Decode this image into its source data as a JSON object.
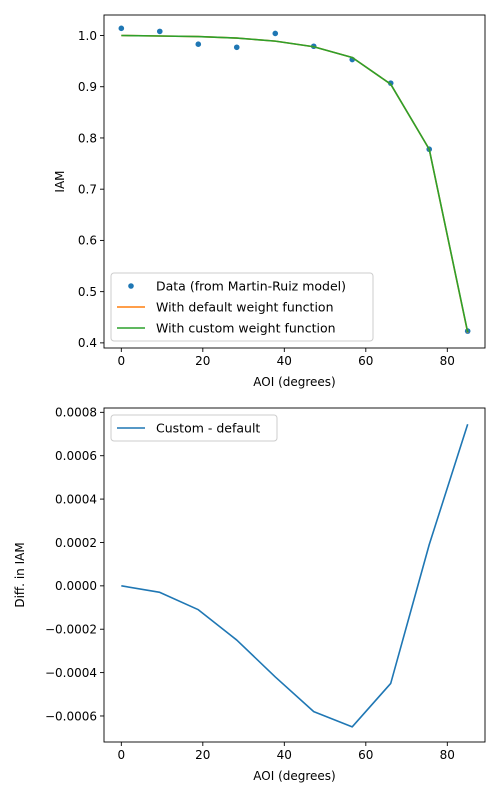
{
  "chart_data": [
    {
      "type": "line",
      "xlabel": "AOI (degrees)",
      "ylabel": "IAM",
      "xlim": [
        -4.25,
        89.25
      ],
      "ylim": [
        0.39,
        1.04
      ],
      "xticks": [
        0,
        20,
        40,
        60,
        80
      ],
      "xtick_labels": [
        "0",
        "20",
        "40",
        "60",
        "80"
      ],
      "yticks": [
        0.4,
        0.5,
        0.6,
        0.7,
        0.8,
        0.9,
        1.0
      ],
      "ytick_labels": [
        "0.4",
        "0.5",
        "0.6",
        "0.7",
        "0.8",
        "0.9",
        "1.0"
      ],
      "grid": false,
      "legend_position": "lower-left",
      "series": [
        {
          "name": "Data (from Martin-Ruiz model)",
          "kind": "scatter",
          "color": "#1f77b4",
          "x": [
            0,
            9.44,
            18.89,
            28.33,
            37.78,
            47.22,
            56.67,
            66.11,
            75.56,
            85.0
          ],
          "y": [
            1.014,
            1.008,
            0.983,
            0.977,
            1.004,
            0.979,
            0.953,
            0.907,
            0.778,
            0.423
          ]
        },
        {
          "name": "With default weight function",
          "kind": "line",
          "color": "#ff7f0e",
          "x": [
            0,
            9.44,
            18.89,
            28.33,
            37.78,
            47.22,
            56.67,
            66.11,
            75.56,
            85.0
          ],
          "y": [
            1.0,
            0.999,
            0.998,
            0.995,
            0.989,
            0.978,
            0.957,
            0.905,
            0.778,
            0.42
          ]
        },
        {
          "name": "With custom weight function",
          "kind": "line",
          "color": "#2ca02c",
          "x": [
            0,
            9.44,
            18.89,
            28.33,
            37.78,
            47.22,
            56.67,
            66.11,
            75.56,
            85.0
          ],
          "y": [
            1.0,
            0.999,
            0.998,
            0.995,
            0.989,
            0.978,
            0.957,
            0.905,
            0.778,
            0.421
          ]
        }
      ]
    },
    {
      "type": "line",
      "xlabel": "AOI (degrees)",
      "ylabel": "Diff. in IAM",
      "xlim": [
        -4.25,
        89.25
      ],
      "ylim": [
        -0.00072,
        0.00082
      ],
      "xticks": [
        0,
        20,
        40,
        60,
        80
      ],
      "xtick_labels": [
        "0",
        "20",
        "40",
        "60",
        "80"
      ],
      "yticks": [
        -0.0006,
        -0.0004,
        -0.0002,
        0.0,
        0.0002,
        0.0004,
        0.0006,
        0.0008
      ],
      "ytick_labels": [
        "−0.0006",
        "−0.0004",
        "−0.0002",
        "0.0000",
        "0.0002",
        "0.0004",
        "0.0006",
        "0.0008"
      ],
      "grid": false,
      "legend_position": "upper-left",
      "series": [
        {
          "name": "Custom - default",
          "kind": "line",
          "color": "#1f77b4",
          "x": [
            0,
            9.44,
            18.89,
            28.33,
            37.78,
            47.22,
            56.67,
            66.11,
            75.56,
            85.0
          ],
          "y": [
            0.0,
            -3e-05,
            -0.00011,
            -0.00025,
            -0.00042,
            -0.00058,
            -0.00065,
            -0.00045,
            0.00019,
            0.000745
          ]
        }
      ]
    }
  ]
}
